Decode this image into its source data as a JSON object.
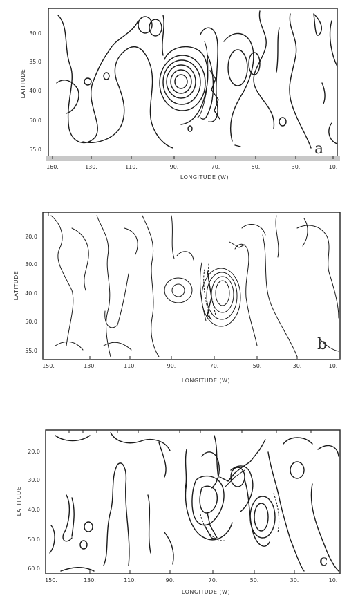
{
  "chart_data": [
    {
      "type": "contour",
      "panel_label": "a",
      "xlabel": "LONGITUDE (W)",
      "ylabel": "LATITUDE",
      "xtick_labels": [
        "160.",
        "130.",
        "110.",
        "90.",
        "70.",
        "50.",
        "30.",
        "10."
      ],
      "ytick_labels": [
        "30.0",
        "35.0",
        "40.0",
        "50.0",
        "55.0"
      ],
      "grid": false
    },
    {
      "type": "contour",
      "panel_label": "b",
      "xlabel": "LONGITUDE (W)",
      "ylabel": "LATITUDE",
      "xtick_labels": [
        "150.",
        "130.",
        "110.",
        "90.",
        "70.",
        "50.",
        "30.",
        "10."
      ],
      "ytick_labels": [
        "20.0",
        "30.0",
        "40.0",
        "50.0",
        "55.0"
      ],
      "grid": false
    },
    {
      "type": "contour",
      "panel_label": "c",
      "xlabel": "LONGITUDE (W)",
      "ylabel": "LATITUDE",
      "xtick_labels": [
        "150.",
        "130.",
        "110.",
        "90.",
        "70.",
        "50.",
        "30.",
        "10."
      ],
      "ytick_labels": [
        "20.0",
        "30.0",
        "40.0",
        "50.0",
        "60.0"
      ],
      "grid": false
    }
  ]
}
